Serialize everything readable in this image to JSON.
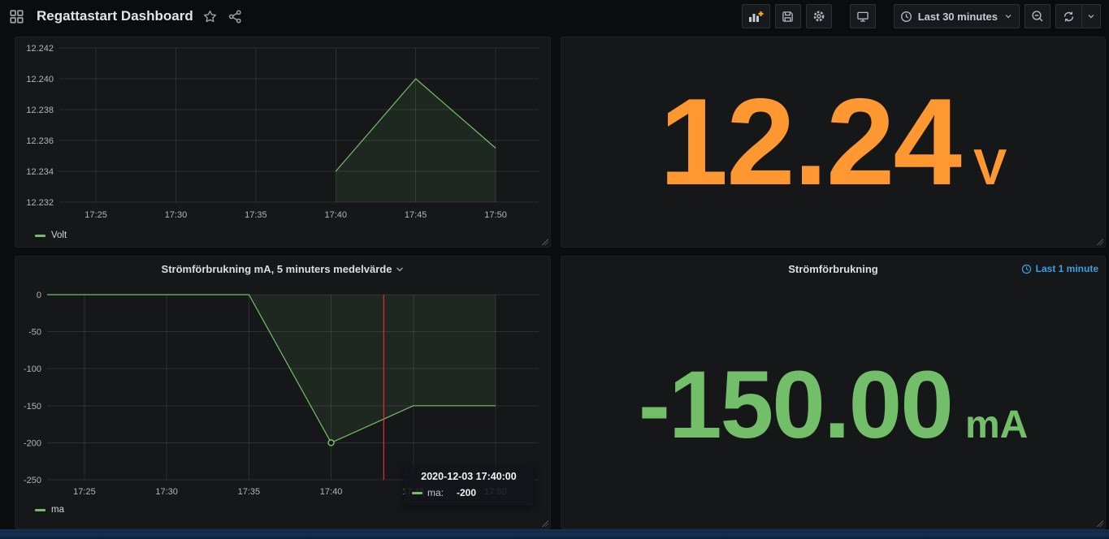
{
  "nav": {
    "title": "Regattastart Dashboard",
    "time_range": "Last 30 minutes"
  },
  "colors": {
    "accent_orange": "#ff9830",
    "accent_green": "#73bf69",
    "accent_blue": "#35a2e8",
    "annotation_red": "#e02f44",
    "series_fill": "rgba(115,191,105,0.10)"
  },
  "panels": {
    "volt_stat": {
      "value": "12.24",
      "unit": "V"
    },
    "current_stat": {
      "title": "Strömförbrukning",
      "time_override_label": "Last 1 minute",
      "value": "-150.00",
      "unit": "mA"
    },
    "current_graph_tooltip": {
      "timestamp": "2020-12-03 17:40:00",
      "series_label": "ma:",
      "value": "-200"
    }
  },
  "chart_data": [
    {
      "id": "volt_graph",
      "type": "area",
      "title": "",
      "x_unit": "minutes_after_midnight (labels HH:MM)",
      "xlim": [
        1042.71,
        1072.69
      ],
      "x_ticks": [
        {
          "v": 1045,
          "label": "17:25"
        },
        {
          "v": 1050,
          "label": "17:30"
        },
        {
          "v": 1055,
          "label": "17:35"
        },
        {
          "v": 1060,
          "label": "17:40"
        },
        {
          "v": 1065,
          "label": "17:45"
        },
        {
          "v": 1070,
          "label": "17:50"
        }
      ],
      "ylim": [
        12.232,
        12.242
      ],
      "y_ticks": [
        {
          "v": 12.242,
          "label": "12.242"
        },
        {
          "v": 12.24,
          "label": "12.240"
        },
        {
          "v": 12.238,
          "label": "12.238"
        },
        {
          "v": 12.236,
          "label": "12.236"
        },
        {
          "v": 12.234,
          "label": "12.234"
        },
        {
          "v": 12.232,
          "label": "12.232"
        }
      ],
      "grid": true,
      "legend_position": "bottom-left",
      "series": [
        {
          "name": "Volt",
          "color": "#73bf69",
          "fill_to": 12.232,
          "points": [
            [
              1060,
              12.234
            ],
            [
              1065,
              12.24
            ],
            [
              1070,
              12.2355
            ]
          ]
        }
      ]
    },
    {
      "id": "current_graph",
      "type": "area",
      "title": "Strömförbrukning mA, 5 minuters medelvärde",
      "x_unit": "minutes_after_midnight (labels HH:MM)",
      "xlim": [
        1042.73,
        1072.62
      ],
      "x_ticks": [
        {
          "v": 1045,
          "label": "17:25"
        },
        {
          "v": 1050,
          "label": "17:30"
        },
        {
          "v": 1055,
          "label": "17:35"
        },
        {
          "v": 1060,
          "label": "17:40"
        },
        {
          "v": 1065,
          "label": "17:45"
        },
        {
          "v": 1070,
          "label": "17:50"
        }
      ],
      "ylim": [
        -250,
        0
      ],
      "y_ticks": [
        {
          "v": 0,
          "label": "0"
        },
        {
          "v": -50,
          "label": "-50"
        },
        {
          "v": -100,
          "label": "-100"
        },
        {
          "v": -150,
          "label": "-150"
        },
        {
          "v": -200,
          "label": "-200"
        },
        {
          "v": -250,
          "label": "-250"
        }
      ],
      "grid": true,
      "legend_position": "bottom-left",
      "series": [
        {
          "name": "ma",
          "color": "#73bf69",
          "fill_to": 0,
          "points": [
            [
              1042.73,
              0
            ],
            [
              1055,
              0
            ],
            [
              1060,
              -200
            ],
            [
              1065,
              -150
            ],
            [
              1070,
              -150
            ]
          ],
          "markers": [
            [
              1060,
              -200
            ]
          ]
        }
      ],
      "annotations": [
        {
          "type": "vline",
          "x": 1063.2,
          "color": "#e02f44"
        }
      ]
    }
  ]
}
